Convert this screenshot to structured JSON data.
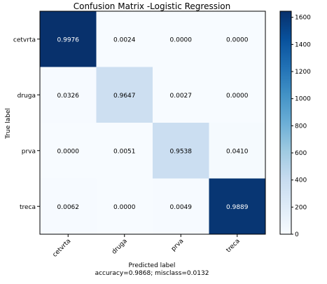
{
  "chart_data": {
    "type": "heatmap",
    "title": "Confusion Matrix -Logistic Regression",
    "ylabel": "True label",
    "xlabel": "Predicted label",
    "xlabel_sub": "accuracy=0.9868; misclass=0.0132",
    "row_labels": [
      "cetvrta",
      "druga",
      "prva",
      "treca"
    ],
    "col_labels": [
      "cetvrta",
      "druga",
      "prva",
      "treca"
    ],
    "values": [
      [
        "0.9976",
        "0.0024",
        "0.0000",
        "0.0000"
      ],
      [
        "0.0326",
        "0.9647",
        "0.0027",
        "0.0000"
      ],
      [
        "0.0000",
        "0.0051",
        "0.9538",
        "0.0410"
      ],
      [
        "0.0062",
        "0.0000",
        "0.0049",
        "0.9889"
      ]
    ],
    "counts": [
      [
        1640,
        4,
        0,
        0
      ],
      [
        12,
        355,
        1,
        0
      ],
      [
        0,
        2,
        372,
        16
      ],
      [
        10,
        0,
        8,
        1610
      ]
    ],
    "colorbar": {
      "min": 0,
      "max": 1645,
      "ticks": [
        "0",
        "200",
        "400",
        "600",
        "800",
        "1000",
        "1200",
        "1400",
        "1600"
      ]
    },
    "colormap": "Blues",
    "grid": false
  }
}
